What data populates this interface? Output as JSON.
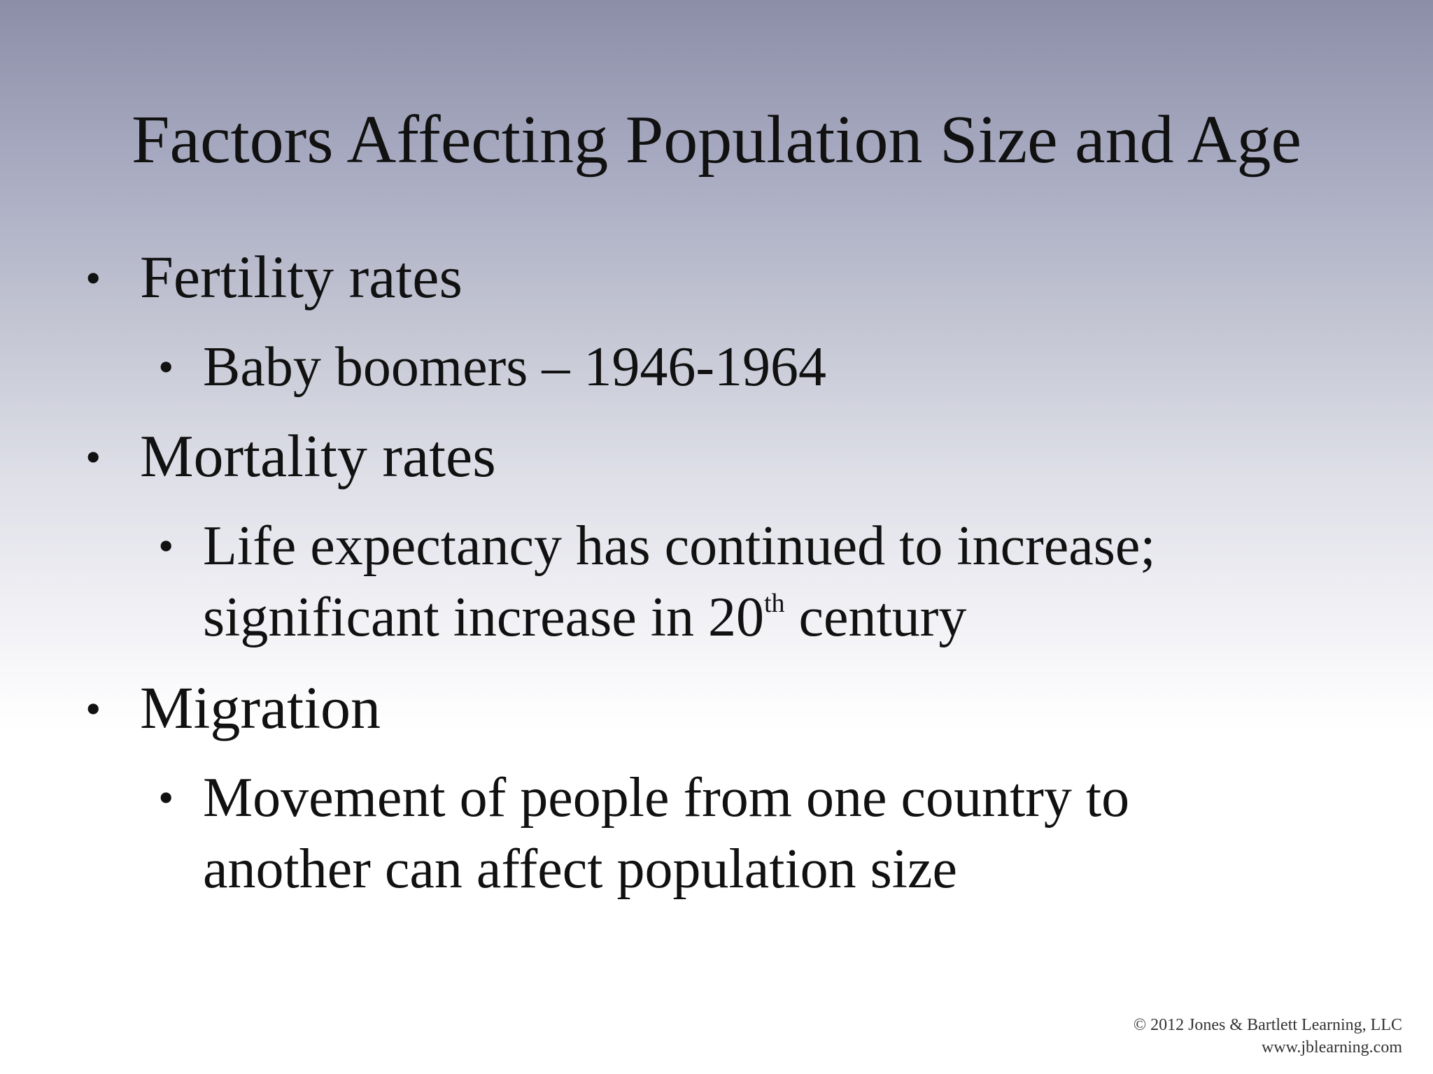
{
  "slide": {
    "title": "Factors Affecting Population Size and Age",
    "bullets": [
      {
        "text": "Fertility rates"
      },
      {
        "text": "Baby boomers – 1946-1964"
      },
      {
        "text": "Mortality rates"
      },
      {
        "line1": "Life expectancy has continued to increase;",
        "line2_pre": "significant increase in 20",
        "line2_sup": "th",
        "line2_post": " century"
      },
      {
        "text": "Migration"
      },
      {
        "line1": "Movement of people from one country to",
        "line2": "another can affect population size"
      }
    ],
    "bullet_glyph": "•",
    "copyright": {
      "line1": "© 2012 Jones & Bartlett Learning, LLC",
      "line2": "www.jblearning.com"
    }
  }
}
